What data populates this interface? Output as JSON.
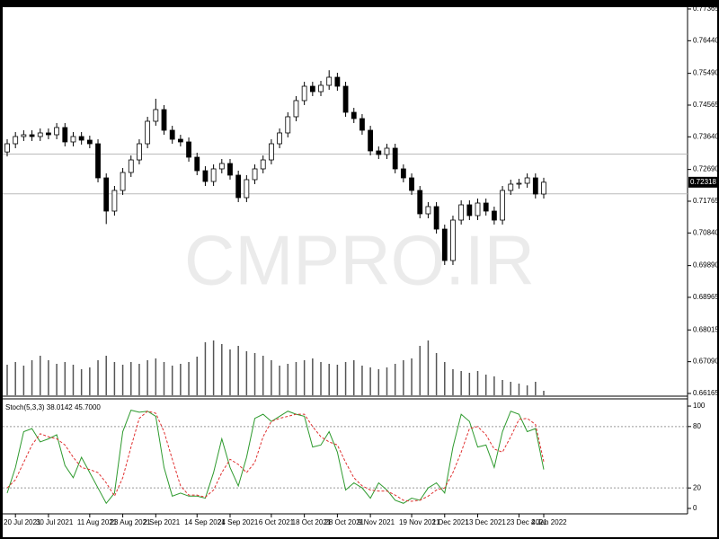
{
  "watermark": "CMPRO.IR",
  "chart_data": [
    {
      "type": "candlestick",
      "categories": [
        null,
        "20 Jul 2021",
        null,
        null,
        null,
        "30 Jul 2021",
        null,
        null,
        null,
        null,
        "11 Aug 2021",
        null,
        null,
        null,
        "23 Aug 2021",
        null,
        null,
        null,
        "2 Sep 2021",
        null,
        null,
        null,
        null,
        "14 Sep 2021",
        null,
        null,
        null,
        "24 Sep 2021",
        null,
        null,
        null,
        null,
        "6 Oct 2021",
        null,
        null,
        null,
        "18 Oct 2021",
        null,
        null,
        null,
        "28 Oct 2021",
        null,
        null,
        null,
        "9 Nov 2021",
        null,
        null,
        null,
        null,
        "19 Nov 2021",
        null,
        null,
        null,
        "1 Dec 2021",
        null,
        null,
        null,
        "13 Dec 2021",
        null,
        null,
        null,
        null,
        "23 Dec 2021",
        null,
        null,
        "4 Jan 2022"
      ],
      "open": [
        0.732,
        0.73439,
        0.73649,
        0.73701,
        0.73649,
        0.73754,
        0.73701,
        0.73911,
        0.73492,
        0.73649,
        0.73544,
        0.73439,
        0.72445,
        0.71477,
        0.72079,
        0.72602,
        0.72968,
        0.73439,
        0.74094,
        0.74434,
        0.73832,
        0.7357,
        0.73492,
        0.73047,
        0.72654,
        0.7234,
        0.72707,
        0.72864,
        0.72524,
        0.71869,
        0.72393,
        0.72707,
        0.72968,
        0.73439,
        0.73754,
        0.74225,
        0.74696,
        0.75114,
        0.74957,
        0.75141,
        0.75376,
        0.75114,
        0.74355,
        0.74172,
        0.73832,
        0.7323,
        0.73125,
        0.73309,
        0.72707,
        0.72445,
        0.72079,
        0.71398,
        0.71608,
        0.70953,
        0.70037,
        0.71215,
        0.7166,
        0.71346,
        0.71712,
        0.71477,
        0.71215,
        0.72079,
        0.72262,
        0.72288,
        0.72445,
        0.71974
      ],
      "high": [
        0.73569,
        0.73779,
        0.73831,
        0.73831,
        0.73884,
        0.73884,
        0.74041,
        0.74041,
        0.73779,
        0.73779,
        0.73674,
        0.73569,
        0.72575,
        0.72209,
        0.72732,
        0.73098,
        0.73569,
        0.74224,
        0.7475,
        0.74564,
        0.73962,
        0.737,
        0.73622,
        0.73177,
        0.72784,
        0.72837,
        0.72994,
        0.72994,
        0.72654,
        0.72523,
        0.72837,
        0.73098,
        0.73569,
        0.73884,
        0.74355,
        0.74826,
        0.75244,
        0.75244,
        0.75271,
        0.7558,
        0.75506,
        0.75244,
        0.74485,
        0.74302,
        0.73962,
        0.7336,
        0.73439,
        0.73439,
        0.72837,
        0.72575,
        0.72209,
        0.71738,
        0.71738,
        0.71083,
        0.71345,
        0.7179,
        0.7179,
        0.71842,
        0.71842,
        0.71607,
        0.72209,
        0.72392,
        0.72418,
        0.72575,
        0.72575,
        0.72448
      ],
      "low": [
        0.7307,
        0.73309,
        0.73519,
        0.73519,
        0.73519,
        0.73571,
        0.73571,
        0.73362,
        0.73362,
        0.73414,
        0.73309,
        0.72315,
        0.711,
        0.71347,
        0.71949,
        0.72472,
        0.72838,
        0.73309,
        0.73964,
        0.73702,
        0.7344,
        0.73362,
        0.72917,
        0.72524,
        0.7221,
        0.7221,
        0.72577,
        0.72394,
        0.71739,
        0.71739,
        0.72263,
        0.72577,
        0.72838,
        0.73309,
        0.73624,
        0.74095,
        0.74566,
        0.74827,
        0.74827,
        0.75011,
        0.74984,
        0.74225,
        0.74042,
        0.73702,
        0.731,
        0.72995,
        0.72995,
        0.72577,
        0.72315,
        0.71949,
        0.71268,
        0.71268,
        0.70823,
        0.69907,
        0.69907,
        0.71085,
        0.71216,
        0.71216,
        0.71347,
        0.71085,
        0.71085,
        0.71949,
        0.72132,
        0.72158,
        0.71844,
        0.71844
      ],
      "close": [
        0.73439,
        0.73649,
        0.73701,
        0.73649,
        0.73754,
        0.73701,
        0.73911,
        0.73492,
        0.73649,
        0.73544,
        0.73439,
        0.72445,
        0.71477,
        0.72079,
        0.72602,
        0.72968,
        0.73439,
        0.74094,
        0.74434,
        0.73832,
        0.7357,
        0.73492,
        0.73047,
        0.72654,
        0.7234,
        0.72707,
        0.72864,
        0.72524,
        0.71869,
        0.72393,
        0.72707,
        0.72968,
        0.73439,
        0.73754,
        0.74225,
        0.74696,
        0.75114,
        0.74957,
        0.75141,
        0.75376,
        0.75114,
        0.74355,
        0.74172,
        0.73832,
        0.7323,
        0.73125,
        0.73309,
        0.72707,
        0.72445,
        0.72079,
        0.71398,
        0.71608,
        0.70953,
        0.70037,
        0.71215,
        0.7166,
        0.71346,
        0.71712,
        0.71477,
        0.71215,
        0.72079,
        0.72262,
        0.72288,
        0.72445,
        0.71974,
        0.72318
      ],
      "volume": [
        35,
        38,
        34,
        40,
        45,
        40,
        36,
        38,
        35,
        30,
        32,
        40,
        45,
        38,
        35,
        38,
        36,
        40,
        42,
        38,
        34,
        36,
        38,
        44,
        60,
        62,
        58,
        52,
        56,
        50,
        48,
        45,
        40,
        34,
        36,
        38,
        40,
        42,
        38,
        36,
        35,
        38,
        40,
        34,
        32,
        30,
        32,
        36,
        40,
        42,
        56,
        62,
        48,
        38,
        30,
        28,
        26,
        28,
        24,
        22,
        18,
        16,
        14,
        12,
        16,
        6
      ],
      "volume_ylim": [
        0,
        150
      ],
      "ylim": [
        0.66086,
        0.77417
      ],
      "yticks": [
        0.77365,
        {
          "value": 0.7644,
          "label": "0.76440"
        },
        {
          "value": 0.7549,
          "label": "0.75490"
        },
        0.74565,
        {
          "value": 0.7364,
          "label": "0.73640"
        },
        {
          "value": 0.7269,
          "label": "0.72690"
        },
        0.71765,
        {
          "value": 0.7084,
          "label": "0.70840"
        },
        {
          "value": 0.6989,
          "label": "0.69890"
        },
        0.68965,
        0.68015,
        {
          "value": 0.6709,
          "label": "0.67090"
        },
        0.66165
      ],
      "levels": [
        0.7314,
        0.7198
      ],
      "up_color": "#ffffff",
      "down_color": "#000000"
    },
    {
      "type": "line",
      "title": "Stoch(5,3,3) 38.0142 45.7000",
      "series": [
        {
          "color": "#2e9a2e",
          "values": [
            15,
            40,
            75,
            78,
            65,
            68,
            72,
            42,
            30,
            50,
            35,
            20,
            5,
            15,
            75,
            96,
            94,
            95,
            90,
            40,
            12,
            15,
            12,
            12,
            10,
            35,
            68,
            40,
            22,
            50,
            88,
            92,
            85,
            90,
            95,
            92,
            90,
            60,
            62,
            75,
            55,
            18,
            25,
            20,
            10,
            25,
            18,
            8,
            5,
            10,
            8,
            20,
            25,
            15,
            60,
            92,
            85,
            60,
            62,
            40,
            75,
            95,
            92,
            75,
            78,
            38.0142
          ]
        },
        {
          "color": "#e03030",
          "dashed": true,
          "values": [
            20,
            28,
            45,
            62,
            73,
            70,
            68,
            62,
            50,
            40,
            38,
            35,
            25,
            12,
            30,
            60,
            88,
            95,
            93,
            75,
            48,
            22,
            13,
            13,
            11,
            18,
            35,
            48,
            43,
            35,
            45,
            70,
            85,
            88,
            90,
            92,
            92,
            80,
            70,
            65,
            62,
            45,
            30,
            22,
            18,
            17,
            17,
            13,
            8,
            7,
            8,
            12,
            18,
            20,
            35,
            55,
            78,
            80,
            72,
            58,
            55,
            70,
            87,
            88,
            82,
            45.7
          ]
        }
      ],
      "ylim": [
        -5.3,
        105.3
      ],
      "yticks": [
        0,
        20,
        80,
        100
      ],
      "levels": [
        20,
        80
      ]
    }
  ]
}
